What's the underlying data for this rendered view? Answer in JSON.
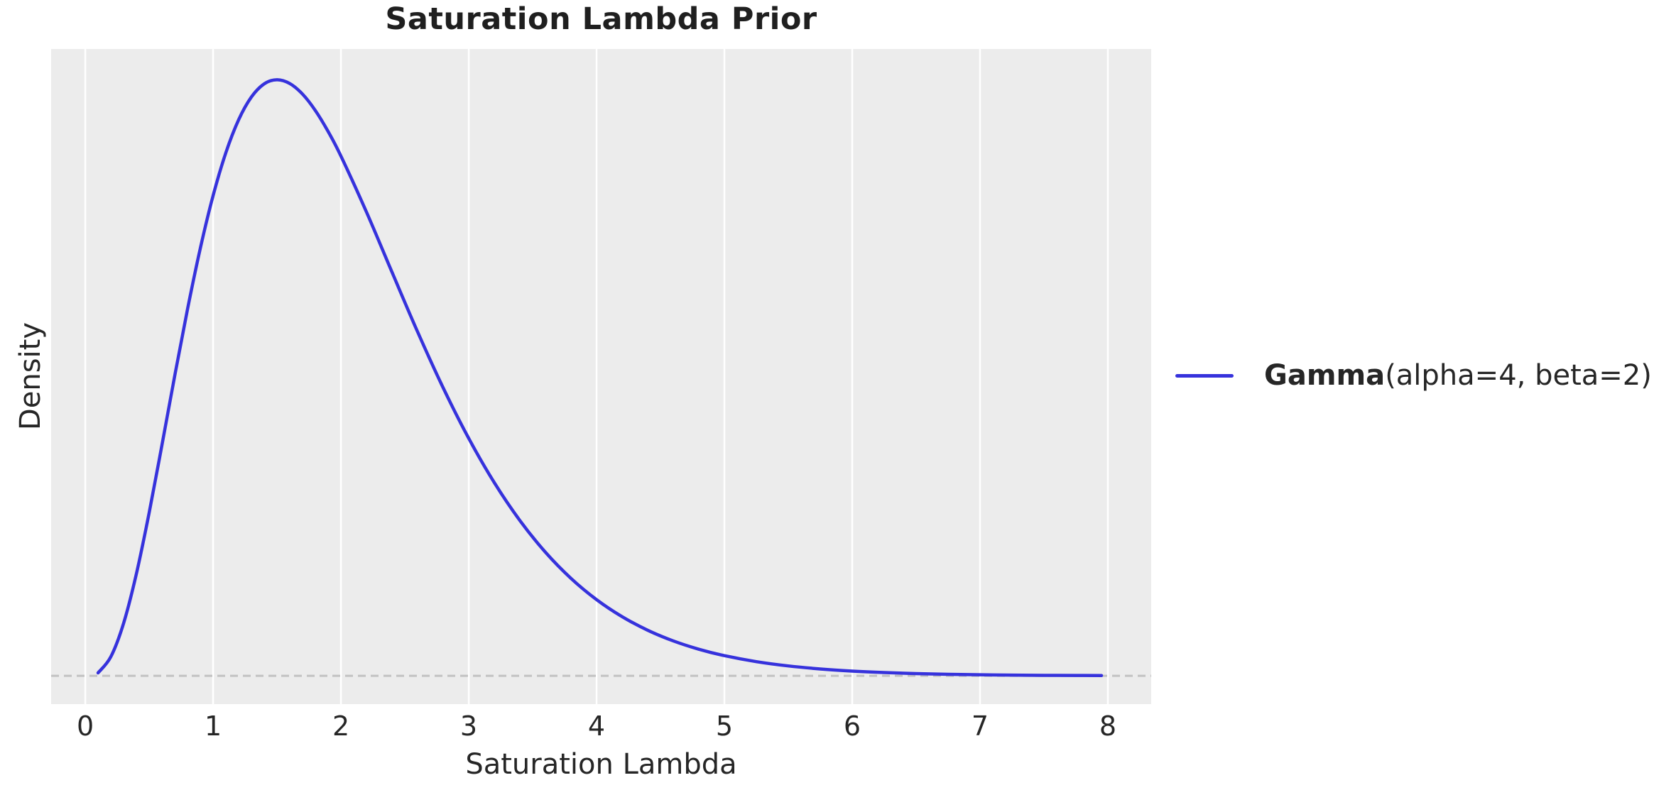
{
  "title": "Saturation Lambda Prior",
  "xlabel": "Saturation Lambda",
  "ylabel": "Density",
  "legend": {
    "bold": "Gamma",
    "rest": "(alpha=4, beta=2)"
  },
  "colors": {
    "curve": "#3632dc",
    "plot_bg": "#ececec",
    "grid": "#ffffff",
    "baseline": "#c2c2c2",
    "text": "#262626"
  },
  "chart_data": {
    "type": "line",
    "title": "Saturation Lambda Prior",
    "xlabel": "Saturation Lambda",
    "ylabel": "Density",
    "x_ticks": [
      0,
      1,
      2,
      3,
      4,
      5,
      6,
      7,
      8
    ],
    "y_ticks": [],
    "xlim": [
      -0.267,
      8.339
    ],
    "ylim": [
      -0.0213,
      0.4712
    ],
    "grid": "vertical-only",
    "legend_position": "right-outside",
    "baseline_y": 0,
    "baseline_style": "dashed",
    "distribution": {
      "name": "Gamma",
      "alpha": 4,
      "beta": 2
    },
    "series": [
      {
        "name": "Gamma(alpha=4, beta=2)",
        "x": [
          0.1,
          0.2,
          0.3,
          0.4,
          0.5,
          0.6,
          0.7,
          0.8,
          0.9,
          1.0,
          1.1,
          1.2,
          1.3,
          1.4,
          1.5,
          1.6,
          1.7,
          1.8,
          1.9,
          2.0,
          2.2,
          2.4,
          2.6,
          2.8,
          3.0,
          3.2,
          3.4,
          3.6,
          3.8,
          4.0,
          4.2,
          4.4,
          4.6,
          4.8,
          5.0,
          5.25,
          5.5,
          5.75,
          6.0,
          6.25,
          6.5,
          6.75,
          7.0,
          7.25,
          7.5,
          7.75,
          7.95
        ],
        "y": [
          0.00218,
          0.0143,
          0.03951,
          0.07668,
          0.12263,
          0.17348,
          0.22554,
          0.27563,
          0.32132,
          0.36089,
          0.39325,
          0.418,
          0.43513,
          0.44499,
          0.44808,
          0.44524,
          0.43724,
          0.42493,
          0.40916,
          0.39073,
          0.34861,
          0.30337,
          0.25856,
          0.21648,
          0.17847,
          0.14519,
          0.11673,
          0.09289,
          0.07323,
          0.05725,
          0.04443,
          0.03424,
          0.02622,
          0.01997,
          0.01513,
          0.01063,
          0.00741,
          0.00514,
          0.00354,
          0.00243,
          0.00166,
          0.00112,
          0.00076,
          0.00051,
          0.00034,
          0.00023,
          0.00017
        ]
      }
    ]
  }
}
